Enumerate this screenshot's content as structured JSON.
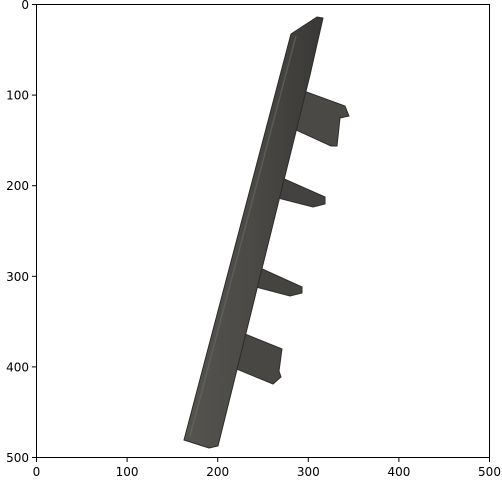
{
  "figure": {
    "x_ticks": [
      "0",
      "100",
      "200",
      "300",
      "400",
      "500"
    ],
    "y_ticks": [
      "0",
      "100",
      "200",
      "300",
      "400",
      "500"
    ],
    "x_range": [
      0,
      500
    ],
    "y_range": [
      0,
      500
    ],
    "y_axis_inverted": true,
    "subject": "dark grey plastic bracket with a long diagonal spine and four protruding tabs",
    "colors": {
      "background": "#ffffff",
      "axes": "#000000",
      "object_dark": "#3b3a38",
      "object_mid": "#4d4c49",
      "object_light": "#5e5d59"
    }
  }
}
